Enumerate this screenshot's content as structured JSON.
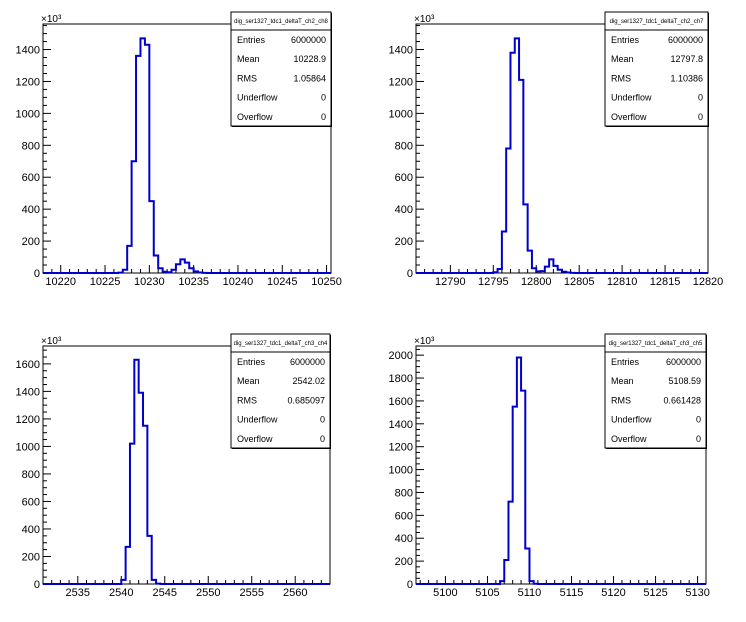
{
  "chart_data": [
    {
      "type": "histogram",
      "stats": {
        "name": "dig_ser1327_tdc1_deltaT_ch2_ch8",
        "rows": [
          [
            "Entries",
            "6000000"
          ],
          [
            "Mean",
            "10228.9"
          ],
          [
            "RMS",
            "1.05864"
          ],
          [
            "Underflow",
            "0"
          ],
          [
            "Overflow",
            "0"
          ]
        ]
      },
      "xlim": [
        10218,
        10250.5
      ],
      "ylim": [
        0,
        1560
      ],
      "yexp": "×10³",
      "x_ticks": [
        10220,
        10225,
        10230,
        10235,
        10240,
        10245,
        10250
      ],
      "x_tick_labels": [
        "10220",
        "10225",
        "10230",
        "10235",
        "10240",
        "10245",
        "10250"
      ],
      "y_ticks": [
        0,
        200,
        400,
        600,
        800,
        1000,
        1200,
        1400
      ],
      "y_tick_labels": [
        "0",
        "200",
        "400",
        "600",
        "800",
        "1000",
        "1200",
        "1400"
      ],
      "bin_edges_start": 10226.5,
      "bin_width": 0.5,
      "values": [
        2,
        20,
        170,
        700,
        1360,
        1470,
        1430,
        450,
        110,
        30,
        8,
        5,
        20,
        55,
        85,
        65,
        30,
        10,
        3,
        1,
        0
      ]
    },
    {
      "type": "histogram",
      "stats": {
        "name": "dig_ser1327_tdc1_deltaT_ch2_ch7",
        "rows": [
          [
            "Entries",
            "6000000"
          ],
          [
            "Mean",
            "12797.8"
          ],
          [
            "RMS",
            "1.10386"
          ],
          [
            "Underflow",
            "0"
          ],
          [
            "Overflow",
            "0"
          ]
        ]
      },
      "xlim": [
        12786,
        12820
      ],
      "ylim": [
        0,
        1560
      ],
      "yexp": "×10³",
      "x_ticks": [
        12790,
        12795,
        12800,
        12805,
        12810,
        12815,
        12820
      ],
      "x_tick_labels": [
        "12790",
        "12795",
        "12800",
        "12805",
        "12810",
        "12815",
        "12820"
      ],
      "y_ticks": [
        0,
        200,
        400,
        600,
        800,
        1000,
        1200,
        1400
      ],
      "y_tick_labels": [
        "0",
        "200",
        "400",
        "600",
        "800",
        "1000",
        "1200",
        "1400"
      ],
      "bin_edges_start": 12795.0,
      "bin_width": 0.5,
      "values": [
        5,
        25,
        260,
        780,
        1380,
        1470,
        1210,
        430,
        140,
        30,
        10,
        12,
        40,
        85,
        45,
        20,
        8,
        3,
        1,
        0
      ]
    },
    {
      "type": "histogram",
      "stats": {
        "name": "dig_ser1327_tdc1_deltaT_ch3_ch4",
        "rows": [
          [
            "Entries",
            "6000000"
          ],
          [
            "Mean",
            "2542.02"
          ],
          [
            "RMS",
            "0.685097"
          ],
          [
            "Underflow",
            "0"
          ],
          [
            "Overflow",
            "0"
          ]
        ]
      },
      "xlim": [
        2531,
        2564
      ],
      "ylim": [
        0,
        1730
      ],
      "yexp": "×10³",
      "x_ticks": [
        2535,
        2540,
        2545,
        2550,
        2555,
        2560
      ],
      "x_tick_labels": [
        "2535",
        "2540",
        "2545",
        "2550",
        "2555",
        "2560"
      ],
      "y_ticks": [
        0,
        200,
        400,
        600,
        800,
        1000,
        1200,
        1400,
        1600
      ],
      "y_tick_labels": [
        "0",
        "200",
        "400",
        "600",
        "800",
        "1000",
        "1200",
        "1400",
        "1600"
      ],
      "bin_edges_start": 2540.0,
      "bin_width": 0.5,
      "values": [
        30,
        270,
        1020,
        1630,
        1390,
        1150,
        350,
        30,
        3,
        0
      ]
    },
    {
      "type": "histogram",
      "stats": {
        "name": "dig_ser1327_tdc1_deltaT_ch3_ch5",
        "rows": [
          [
            "Entries",
            "6000000"
          ],
          [
            "Mean",
            "5108.59"
          ],
          [
            "RMS",
            "0.661428"
          ],
          [
            "Underflow",
            "0"
          ],
          [
            "Overflow",
            "0"
          ]
        ]
      },
      "xlim": [
        5096.5,
        5131
      ],
      "ylim": [
        0,
        2080
      ],
      "yexp": "×10³",
      "x_ticks": [
        5100,
        5105,
        5110,
        5115,
        5120,
        5125,
        5130
      ],
      "x_tick_labels": [
        "5100",
        "5105",
        "5110",
        "5115",
        "5120",
        "5125",
        "5130"
      ],
      "y_ticks": [
        0,
        200,
        400,
        600,
        800,
        1000,
        1200,
        1400,
        1600,
        1800,
        2000
      ],
      "y_tick_labels": [
        "0",
        "200",
        "400",
        "600",
        "800",
        "1000",
        "1200",
        "1400",
        "1600",
        "1800",
        "2000"
      ],
      "bin_edges_start": 5106.5,
      "bin_width": 0.5,
      "values": [
        25,
        210,
        720,
        1550,
        1980,
        1690,
        310,
        25,
        2,
        0
      ]
    }
  ]
}
